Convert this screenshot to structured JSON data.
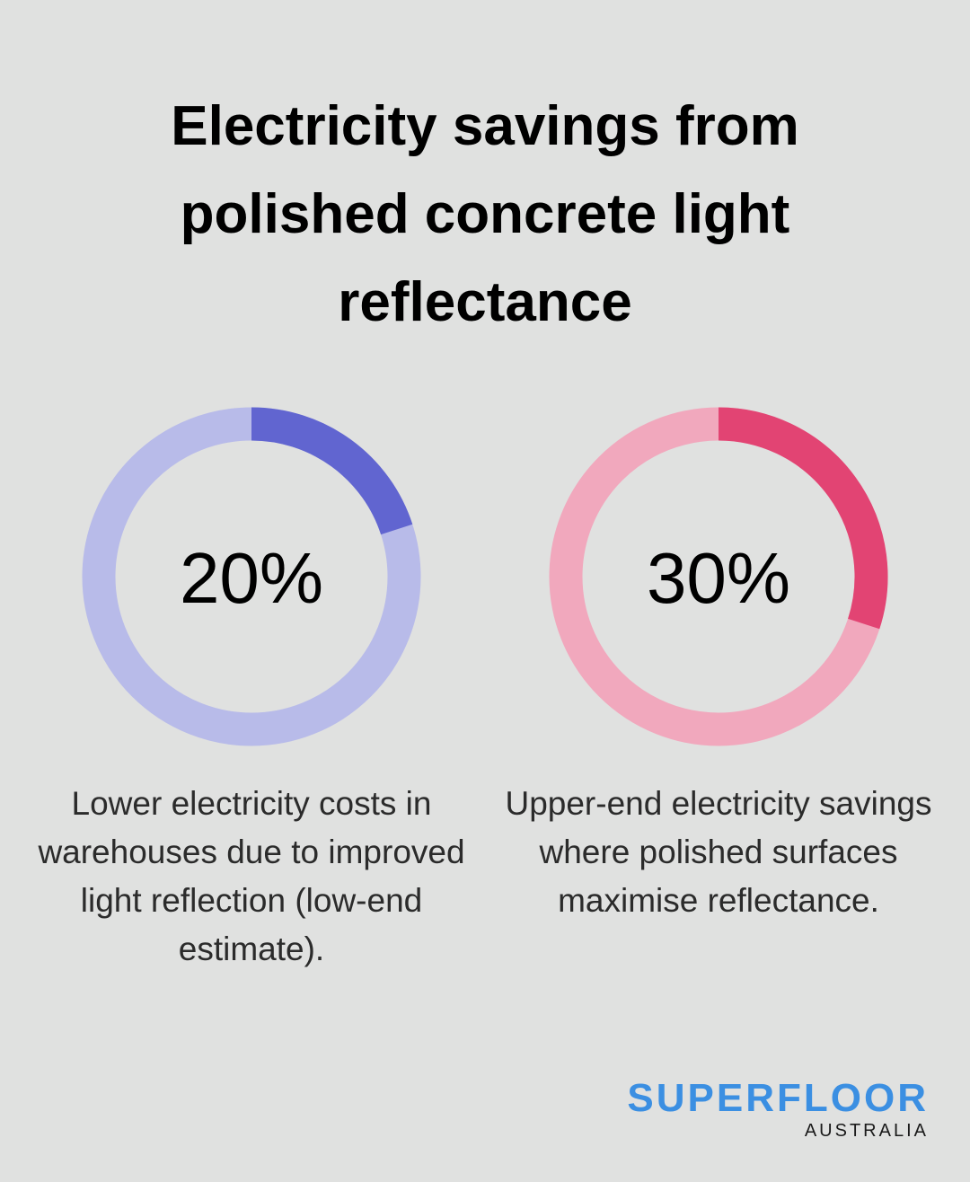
{
  "title": "Electricity savings from polished concrete light reflectance",
  "chart_data": [
    {
      "type": "donut",
      "values": [
        20
      ],
      "value_labels": [
        "20%"
      ],
      "color": "#6165d0",
      "track_color": "#b8bbe9",
      "description": "Lower electricity costs in warehouses due to improved light reflection (low-end estimate)."
    },
    {
      "type": "donut",
      "values": [
        30
      ],
      "value_labels": [
        "30%"
      ],
      "color": "#e24473",
      "track_color": "#f1a8bd",
      "description": "Upper-end electricity savings where polished surfaces maximise reflectance."
    }
  ],
  "logo": {
    "name": "SUPERFLOOR",
    "tagline": "AUSTRALIA"
  }
}
